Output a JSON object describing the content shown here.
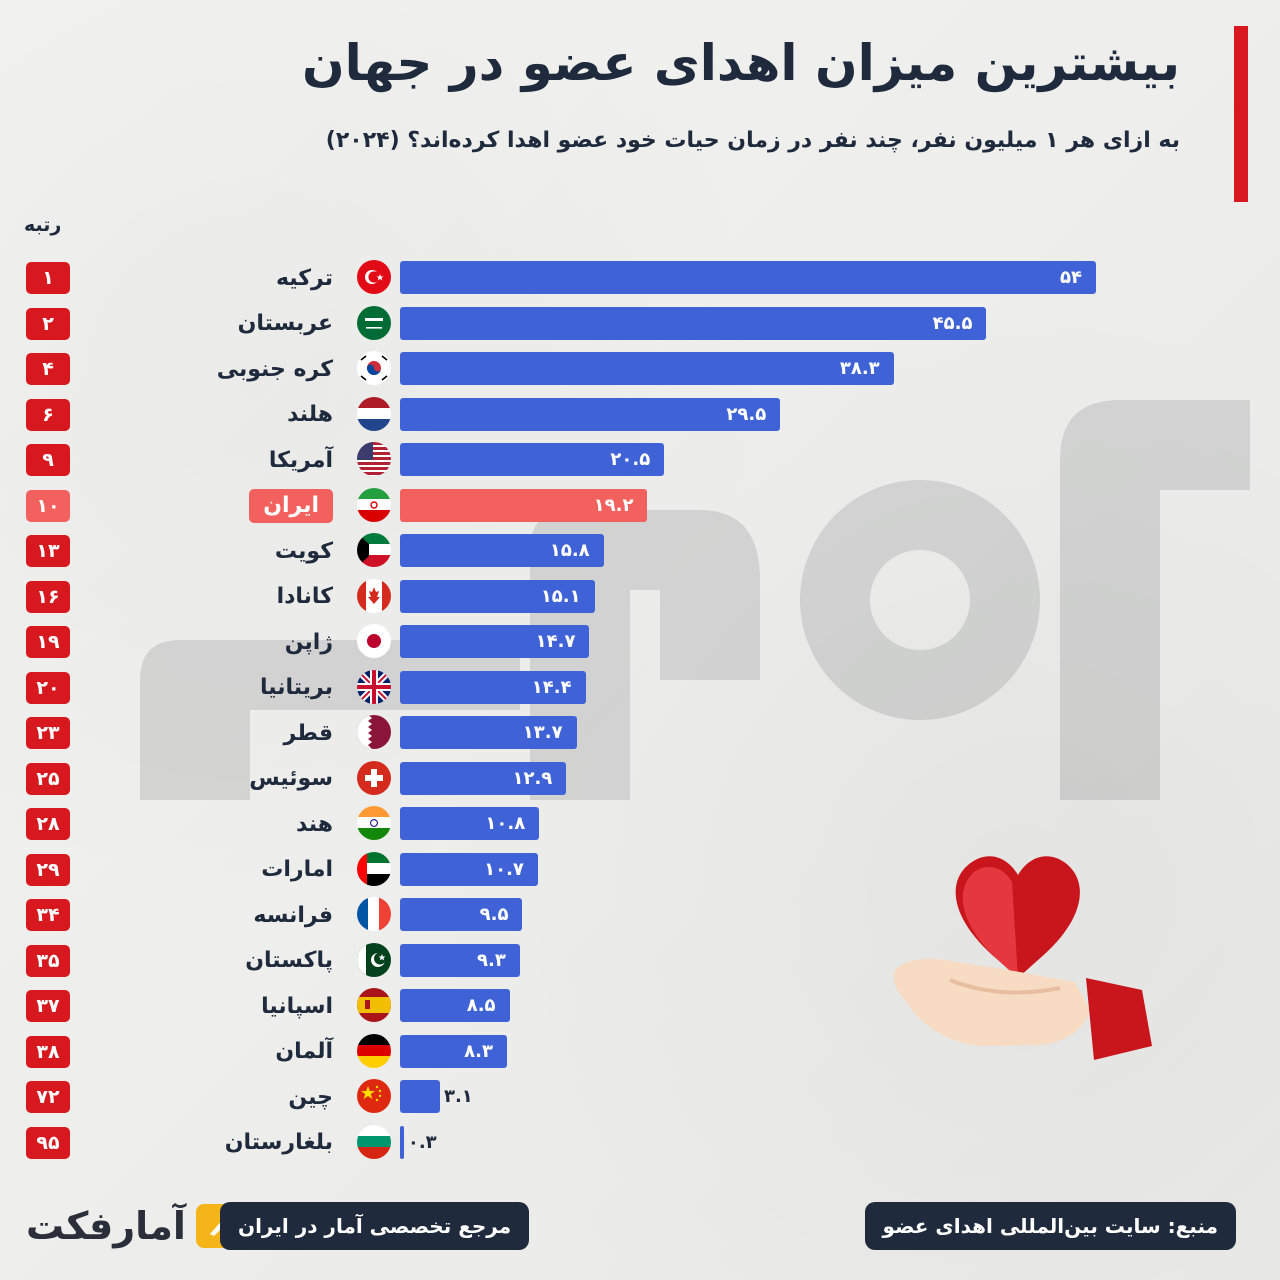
{
  "title": "بیشترین میزان اهدای عضو در جهان",
  "subtitle": "به ازای هر ۱ میلیون نفر، چند نفر در زمان حیات خود عضو اهدا کرده‌اند؟ (۲۰۲۴)",
  "rank_header": "رتبه",
  "colors": {
    "bar": "#3f63d6",
    "highlight": "#f2615e",
    "rank_badge": "#d7191f",
    "accent": "#d7191f",
    "text": "#1f2a3c"
  },
  "chart_data": {
    "type": "bar",
    "orientation": "horizontal",
    "title": "بیشترین میزان اهدای عضو در جهان",
    "subtitle": "به ازای هر ۱ میلیون نفر، چند نفر در زمان حیات خود عضو اهدا کرده‌اند؟ (۲۰۲۴)",
    "xlim": [
      0,
      54
    ],
    "grid": false,
    "highlight_index": 5,
    "categories": [
      "ترکیه",
      "عربستان",
      "کره جنوبی",
      "هلند",
      "آمریکا",
      "ایران",
      "کویت",
      "کانادا",
      "ژاپن",
      "بریتانیا",
      "قطر",
      "سوئیس",
      "هند",
      "امارات",
      "فرانسه",
      "پاکستان",
      "اسپانیا",
      "آلمان",
      "چین",
      "بلغارستان"
    ],
    "values": [
      54,
      45.5,
      38.3,
      29.5,
      20.5,
      19.2,
      15.8,
      15.1,
      14.7,
      14.4,
      13.7,
      12.9,
      10.8,
      10.7,
      9.5,
      9.3,
      8.5,
      8.3,
      3.1,
      0.3
    ],
    "value_labels": [
      "۵۴",
      "۴۵.۵",
      "۳۸.۳",
      "۲۹.۵",
      "۲۰.۵",
      "۱۹.۲",
      "۱۵.۸",
      "۱۵.۱",
      "۱۴.۷",
      "۱۴.۴",
      "۱۳.۷",
      "۱۲.۹",
      "۱۰.۸",
      "۱۰.۷",
      "۹.۵",
      "۹.۳",
      "۸.۵",
      "۸.۳",
      "۳.۱",
      "۰.۳"
    ],
    "ranks": [
      "۱",
      "۲",
      "۴",
      "۶",
      "۹",
      "۱۰",
      "۱۳",
      "۱۶",
      "۱۹",
      "۲۰",
      "۲۳",
      "۲۵",
      "۲۸",
      "۲۹",
      "۳۴",
      "۳۵",
      "۳۷",
      "۳۸",
      "۷۲",
      "۹۵"
    ],
    "flags": [
      "turkey-flag",
      "saudi-flag",
      "south-korea-flag",
      "netherlands-flag",
      "usa-flag",
      "iran-flag",
      "kuwait-flag",
      "canada-flag",
      "japan-flag",
      "uk-flag",
      "qatar-flag",
      "switzerland-flag",
      "india-flag",
      "uae-flag",
      "france-flag",
      "pakistan-flag",
      "spain-flag",
      "germany-flag",
      "china-flag",
      "bulgaria-flag"
    ]
  },
  "footer": {
    "brand": "آمارفکت",
    "tagline": "مرجع تخصصی آمار در ایران",
    "source": "منبع: سایت بین‌المللی اهدای عضو"
  }
}
